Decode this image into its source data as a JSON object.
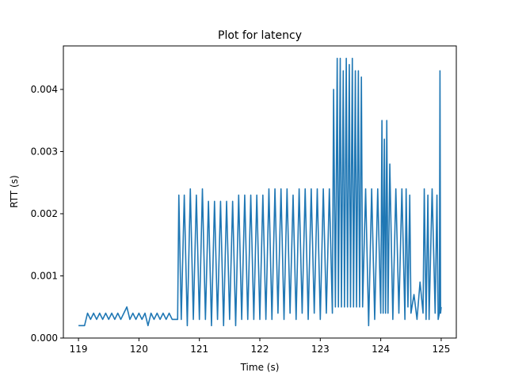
{
  "chart_data": {
    "type": "line",
    "title": "Plot for latency",
    "xlabel": "Time (s)",
    "ylabel": "RTT (s)",
    "xlim": [
      118.75,
      125.25
    ],
    "ylim": [
      0.0,
      0.0047
    ],
    "xticks": [
      119,
      120,
      121,
      122,
      123,
      124,
      125
    ],
    "xtick_labels": [
      "119",
      "120",
      "121",
      "122",
      "123",
      "124",
      "125"
    ],
    "yticks": [
      0.0,
      0.001,
      0.002,
      0.003,
      0.004
    ],
    "ytick_labels": [
      "0.000",
      "0.001",
      "0.002",
      "0.003",
      "0.004"
    ],
    "grid": false,
    "series": [
      {
        "color": "#1f77b4",
        "x": [
          119.0,
          119.05,
          119.1,
          119.15,
          119.2,
          119.25,
          119.3,
          119.35,
          119.4,
          119.45,
          119.5,
          119.55,
          119.6,
          119.65,
          119.7,
          119.75,
          119.8,
          119.85,
          119.9,
          119.95,
          120.0,
          120.05,
          120.1,
          120.15,
          120.2,
          120.25,
          120.3,
          120.35,
          120.4,
          120.45,
          120.5,
          120.55,
          120.6,
          120.64,
          120.66,
          120.7,
          120.75,
          120.8,
          120.85,
          120.9,
          120.95,
          121.0,
          121.05,
          121.1,
          121.15,
          121.2,
          121.25,
          121.3,
          121.35,
          121.4,
          121.45,
          121.5,
          121.55,
          121.6,
          121.65,
          121.7,
          121.75,
          121.8,
          121.85,
          121.9,
          121.95,
          122.0,
          122.05,
          122.1,
          122.15,
          122.2,
          122.25,
          122.3,
          122.35,
          122.4,
          122.45,
          122.5,
          122.55,
          122.6,
          122.65,
          122.7,
          122.75,
          122.8,
          122.85,
          122.9,
          122.95,
          123.0,
          123.05,
          123.1,
          123.15,
          123.2,
          123.22,
          123.25,
          123.28,
          123.3,
          123.33,
          123.35,
          123.38,
          123.4,
          123.43,
          123.45,
          123.48,
          123.5,
          123.53,
          123.55,
          123.58,
          123.6,
          123.63,
          123.65,
          123.68,
          123.7,
          123.75,
          123.8,
          123.85,
          123.9,
          123.95,
          124.0,
          124.02,
          124.04,
          124.06,
          124.08,
          124.1,
          124.12,
          124.15,
          124.2,
          124.25,
          124.3,
          124.35,
          124.4,
          124.42,
          124.45,
          124.48,
          124.5,
          124.55,
          124.6,
          124.65,
          124.7,
          124.72,
          124.75,
          124.78,
          124.8,
          124.85,
          124.9,
          124.93,
          124.95,
          124.97,
          124.98,
          124.99,
          125.0
        ],
        "y": [
          0.0002,
          0.0002,
          0.0002,
          0.0004,
          0.0003,
          0.0004,
          0.0003,
          0.0004,
          0.0003,
          0.0004,
          0.0003,
          0.0004,
          0.0003,
          0.0004,
          0.0003,
          0.0004,
          0.0005,
          0.0003,
          0.0004,
          0.0003,
          0.0004,
          0.0003,
          0.0004,
          0.0002,
          0.0004,
          0.0003,
          0.0004,
          0.0003,
          0.0004,
          0.0003,
          0.0004,
          0.0003,
          0.0003,
          0.0003,
          0.0023,
          0.0003,
          0.0023,
          0.0002,
          0.0024,
          0.0003,
          0.0023,
          0.0003,
          0.0024,
          0.0003,
          0.0022,
          0.0002,
          0.0022,
          0.0003,
          0.0022,
          0.0002,
          0.0022,
          0.0003,
          0.0022,
          0.0002,
          0.0023,
          0.0003,
          0.0023,
          0.0003,
          0.0023,
          0.0003,
          0.0023,
          0.0003,
          0.0023,
          0.0003,
          0.0024,
          0.0003,
          0.0024,
          0.0004,
          0.0024,
          0.0003,
          0.0024,
          0.0004,
          0.0023,
          0.0003,
          0.0024,
          0.0004,
          0.0024,
          0.0003,
          0.0024,
          0.0004,
          0.0024,
          0.0003,
          0.0024,
          0.0004,
          0.0024,
          0.0004,
          0.004,
          0.0005,
          0.0045,
          0.0005,
          0.0045,
          0.0005,
          0.0043,
          0.0005,
          0.0045,
          0.0005,
          0.0044,
          0.0005,
          0.0045,
          0.0005,
          0.0043,
          0.0005,
          0.0043,
          0.0005,
          0.0042,
          0.0005,
          0.0024,
          0.0002,
          0.0024,
          0.0003,
          0.0024,
          0.0004,
          0.0035,
          0.0004,
          0.0032,
          0.0004,
          0.0035,
          0.0004,
          0.0028,
          0.0003,
          0.0024,
          0.0004,
          0.0024,
          0.0003,
          0.0024,
          0.0005,
          0.0023,
          0.0004,
          0.0007,
          0.0003,
          0.0009,
          0.0004,
          0.0024,
          0.0003,
          0.0023,
          0.0003,
          0.0024,
          0.0004,
          0.0023,
          0.0003,
          0.0004,
          0.0043,
          0.0004,
          0.0005
        ]
      }
    ]
  }
}
